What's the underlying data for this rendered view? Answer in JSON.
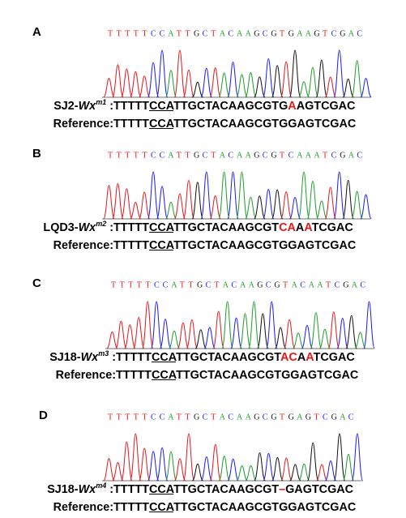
{
  "base_colors": {
    "T": "#e8171b",
    "C": "#1a1aff",
    "A": "#1e9e2a",
    "G": "#111111"
  },
  "highlight_color": "#e8171b",
  "panels": [
    {
      "label": "A",
      "calls": [
        "T",
        "T",
        "T",
        "T",
        "T",
        "C",
        "C",
        "A",
        "T",
        "T",
        "G",
        "C",
        "T",
        "A",
        "C",
        "A",
        "A",
        "G",
        "C",
        "G",
        "T",
        "G",
        "A",
        "A",
        "G",
        "T",
        "C",
        "G",
        "A",
        "C"
      ],
      "sample": {
        "name": "SJ2-",
        "allele": "Wx",
        "sup": "m1",
        "sep": " :",
        "segments": [
          {
            "text": "TTTTT"
          },
          {
            "text": "CCA",
            "underline": true
          },
          {
            "text": "TTGCTACAAGCGTG"
          },
          {
            "text": "A",
            "highlight": true
          },
          {
            "text": "AGTCGAC"
          }
        ]
      },
      "reference": {
        "label": "Reference:",
        "segments": [
          {
            "text": "TTTTT"
          },
          {
            "text": "CCA",
            "underline": true
          },
          {
            "text": "TTGCTACAAGCGTGGAGTCGAC"
          }
        ]
      }
    },
    {
      "label": "B",
      "calls": [
        "T",
        "T",
        "T",
        "T",
        "T",
        "C",
        "C",
        "A",
        "T",
        "T",
        "G",
        "C",
        "T",
        "A",
        "C",
        "A",
        "A",
        "G",
        "C",
        "G",
        "T",
        "C",
        "A",
        "A",
        "A",
        "T",
        "C",
        "G",
        "A",
        "C"
      ],
      "sample": {
        "name": "LQD3-",
        "allele": "Wx",
        "sup": "m2",
        "sep": " :",
        "segments": [
          {
            "text": "TTTTT"
          },
          {
            "text": "CCA",
            "underline": true
          },
          {
            "text": "TTGCTACAAGCGT"
          },
          {
            "text": "CA",
            "highlight": true
          },
          {
            "text": "A"
          },
          {
            "text": "A",
            "highlight": true
          },
          {
            "text": "TCGAC"
          }
        ]
      },
      "reference": {
        "label": "Reference:",
        "segments": [
          {
            "text": "TTTTT"
          },
          {
            "text": "CCA",
            "underline": true
          },
          {
            "text": "TTGCTACAAGCGTGGAGTCGAC"
          }
        ]
      }
    },
    {
      "label": "C",
      "calls": [
        "T",
        "T",
        "T",
        "T",
        "T",
        "C",
        "C",
        "A",
        "T",
        "T",
        "G",
        "C",
        "T",
        "A",
        "C",
        "A",
        "A",
        "G",
        "C",
        "G",
        "T",
        "A",
        "C",
        "A",
        "A",
        "T",
        "C",
        "G",
        "A",
        "C"
      ],
      "sample": {
        "name": "SJ18-",
        "allele": "Wx",
        "sup": "m3",
        "sep": " :",
        "segments": [
          {
            "text": "TTTTT"
          },
          {
            "text": "CCA",
            "underline": true
          },
          {
            "text": "TTGCTACAAGCGT"
          },
          {
            "text": "AC",
            "highlight": true
          },
          {
            "text": "A"
          },
          {
            "text": "A",
            "highlight": true
          },
          {
            "text": "TCGAC"
          }
        ]
      },
      "reference": {
        "label": "Reference:",
        "segments": [
          {
            "text": "TTTTT"
          },
          {
            "text": "CCA",
            "underline": true
          },
          {
            "text": "TTGCTACAAGCGTGGAGTCGAC"
          }
        ]
      }
    },
    {
      "label": "D",
      "calls": [
        "T",
        "T",
        "T",
        "T",
        "T",
        "C",
        "C",
        "A",
        "T",
        "T",
        "G",
        "C",
        "T",
        "A",
        "C",
        "A",
        "A",
        "G",
        "C",
        "G",
        "T",
        "G",
        "A",
        "G",
        "T",
        "C",
        "G",
        "A",
        "C"
      ],
      "sample": {
        "name": "SJ18-",
        "allele": "Wx",
        "sup": "m4",
        "sep": " :",
        "segments": [
          {
            "text": "TTTTT"
          },
          {
            "text": "CCA",
            "underline": true
          },
          {
            "text": "TTGCTACAAGCGT"
          },
          {
            "text": "–",
            "highlight": true
          },
          {
            "text": "GAGTCGAC"
          }
        ]
      },
      "reference": {
        "label": "Reference:",
        "segments": [
          {
            "text": "TTTTT"
          },
          {
            "text": "CCA",
            "underline": true
          },
          {
            "text": "TTGCTACAAGCGTGGAGTCGAC"
          }
        ]
      }
    }
  ]
}
